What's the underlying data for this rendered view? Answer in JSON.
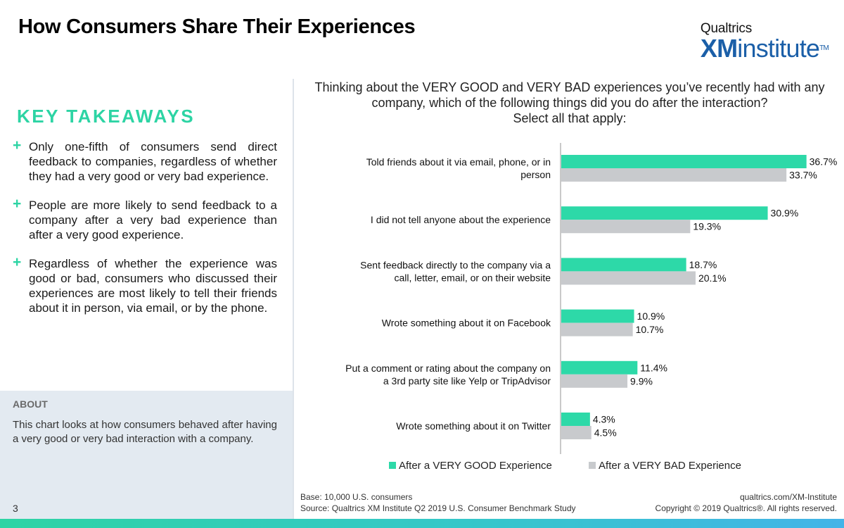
{
  "header": {
    "title": "How Consumers Share Their Experiences",
    "logo_top": "Qualtrics",
    "logo_xm": "XM",
    "logo_institute": "institute",
    "logo_tm": "TM"
  },
  "takeaways": {
    "heading": "KEY TAKEAWAYS",
    "bullet_symbol": "+",
    "items": [
      "Only one-fifth of consumers send direct feedback to companies, regardless of whether they had a very good or very bad experience.",
      "People are more likely to send feedback to a company after a very bad experience than after a very good experience.",
      "Regardless of whether the experience was good or bad, consumers who discussed their experiences are most likely to tell their friends about it in person, via email, or by the phone."
    ]
  },
  "about": {
    "label": "ABOUT",
    "text": "This chart looks at how consumers behaved after having a very good or very bad interaction with a company."
  },
  "page_number": "3",
  "question": {
    "line1": "Thinking about the VERY GOOD and VERY BAD experiences you’ve recently had with any",
    "line2": "company, which of the following things did you do after the interaction?",
    "line3": "Select all that apply:"
  },
  "colors": {
    "good": "#2dd9a8",
    "bad": "#c8cacd",
    "accent": "#2dd4a4",
    "brand": "#1b5fa8"
  },
  "chart_data": {
    "type": "bar",
    "orientation": "horizontal",
    "categories": [
      [
        "Told friends about it via email, phone, or in",
        "person"
      ],
      [
        "I did not tell anyone about the experience"
      ],
      [
        "Sent feedback directly to the company via a",
        "call, letter, email, or on their website"
      ],
      [
        "Wrote something about it on Facebook"
      ],
      [
        "Put a comment or rating about the company on",
        "a 3rd party site like Yelp or TripAdvisor"
      ],
      [
        "Wrote something about it on Twitter"
      ]
    ],
    "series": [
      {
        "name": "After a VERY GOOD Experience",
        "values": [
          36.7,
          30.9,
          18.7,
          10.9,
          11.4,
          4.3
        ],
        "labels": [
          "36.7%",
          "30.9%",
          "18.7%",
          "10.9%",
          "11.4%",
          "4.3%"
        ]
      },
      {
        "name": "After a VERY BAD Experience",
        "values": [
          33.7,
          19.3,
          20.1,
          10.7,
          9.9,
          4.5
        ],
        "labels": [
          "33.7%",
          "19.3%",
          "20.1%",
          "10.7%",
          "9.9%",
          "4.5%"
        ]
      }
    ],
    "xlim": [
      0,
      40
    ],
    "legend_position": "bottom",
    "grid": false
  },
  "footer": {
    "base": "Base: 10,000 U.S. consumers",
    "source": "Source: Qualtrics XM Institute Q2 2019 U.S. Consumer Benchmark Study",
    "url": "qualtrics.com/XM-Institute",
    "copyright": "Copyright © 2019 Qualtrics®. All rights reserved."
  }
}
